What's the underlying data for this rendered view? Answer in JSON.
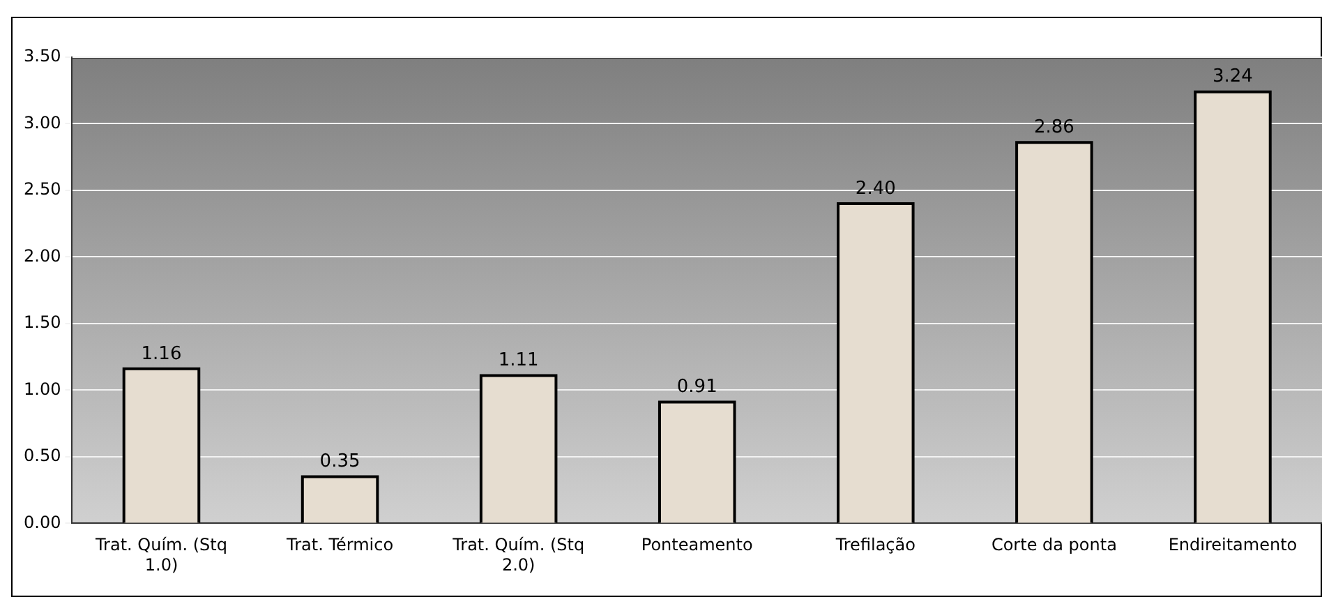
{
  "chart_data": {
    "type": "bar",
    "categories": [
      "Trat. Quím. (Stq 1.0)",
      "Trat. Térmico",
      "Trat. Quím. (Stq 2.0)",
      "Ponteamento",
      "Trefilação",
      "Corte da ponta",
      "Endireitamento"
    ],
    "values": [
      1.16,
      0.35,
      1.11,
      0.91,
      2.4,
      2.86,
      3.24
    ],
    "value_labels": [
      "1.16",
      "0.35",
      "1.11",
      "0.91",
      "2.40",
      "2.86",
      "3.24"
    ],
    "color": "#e6ddd0",
    "ylim": [
      0,
      3.5
    ],
    "yticks": [
      {
        "value": 0,
        "label": "0.00"
      },
      {
        "value": 0.5,
        "label": "0.50"
      },
      {
        "value": 1,
        "label": "1.00"
      },
      {
        "value": 1.5,
        "label": "1.50"
      },
      {
        "value": 2,
        "label": "2.00"
      },
      {
        "value": 2.5,
        "label": "2.50"
      },
      {
        "value": 3,
        "label": "3.00"
      },
      {
        "value": 3.5,
        "label": "3.50"
      }
    ],
    "grid": "y",
    "legend": false
  }
}
